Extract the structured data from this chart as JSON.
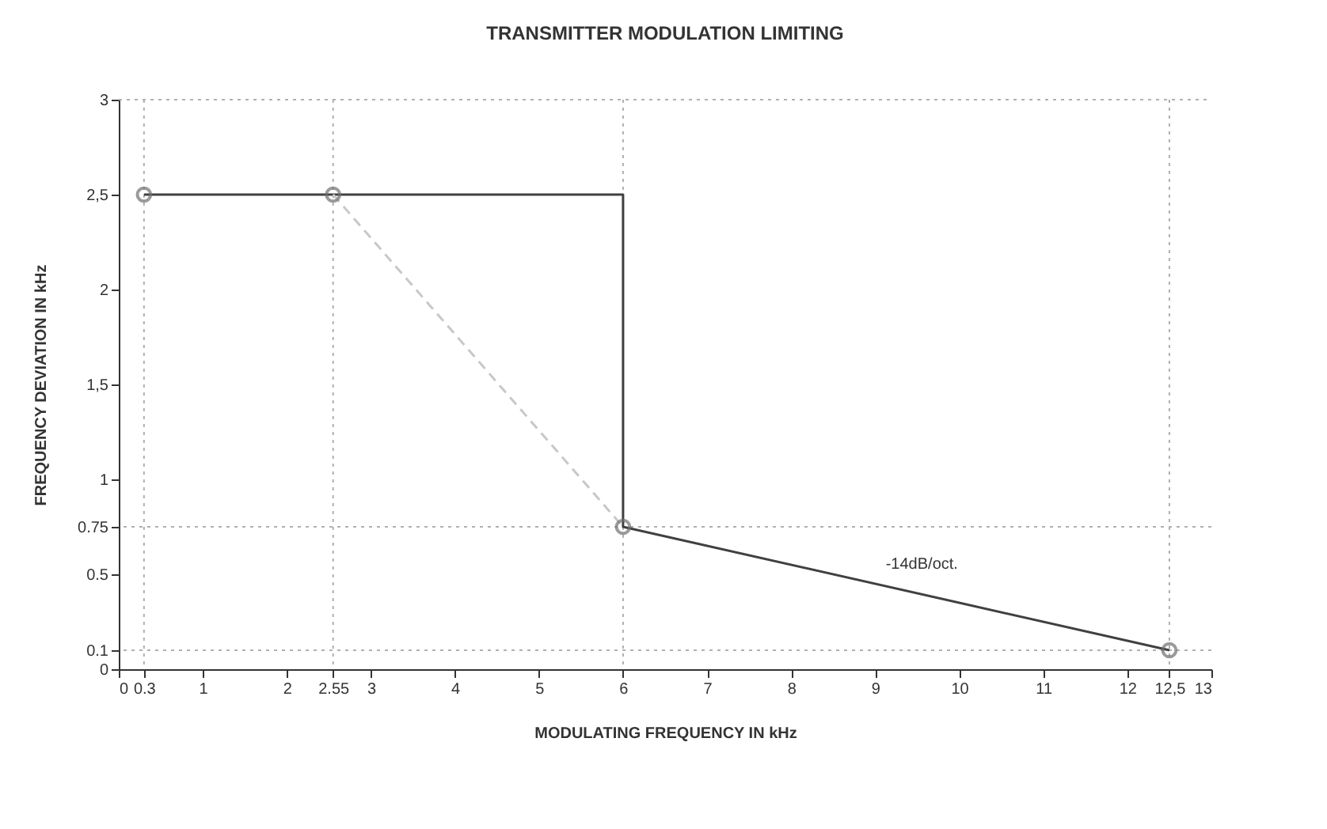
{
  "chart_data": {
    "type": "line",
    "title": "TRANSMITTER MODULATION LIMITING",
    "xlabel": "MODULATING FREQUENCY IN kHz",
    "ylabel": "FREQUENCY DEVIATION IN kHz",
    "series": [
      {
        "color": "#404040",
        "x": [
          0.3,
          2.55,
          6,
          6,
          12.5
        ],
        "values": [
          2.5,
          2.5,
          2.5,
          0.75,
          0.1
        ],
        "marker": "none",
        "line_style": "solid"
      },
      {
        "color": "#c8c8c8",
        "x": [
          2.55,
          6
        ],
        "values": [
          2.5,
          0.75
        ],
        "marker": "none",
        "line_style": "dashed"
      },
      {
        "type": "scatter",
        "color": "#707070",
        "x": [
          0.3,
          2.55,
          6,
          12.5
        ],
        "values": [
          2.5,
          2.5,
          0.75,
          0.1
        ],
        "marker": "circle"
      }
    ],
    "xlim": [
      0,
      13
    ],
    "ylim": [
      0,
      3
    ],
    "xticks": [
      0,
      {
        "value": 0.3,
        "label": "0.3"
      },
      1,
      2,
      {
        "value": 2.55,
        "label": "2.55"
      },
      3,
      4,
      5,
      6,
      7,
      8,
      9,
      10,
      11,
      12,
      {
        "value": 12.5,
        "label": "12,5"
      },
      13
    ],
    "yticks": [
      0,
      {
        "value": 0.1,
        "label": "0.1"
      },
      {
        "value": 0.5,
        "label": "0.5"
      },
      {
        "value": 0.75,
        "label": "0.75"
      },
      1,
      {
        "value": 1.5,
        "label": "1,5"
      },
      2,
      {
        "value": 2.5,
        "label": "2,5"
      },
      3
    ],
    "ref_lines": [
      {
        "axis": "x",
        "value": 0.3,
        "color": "#b0b0b0",
        "line_style": "dotted"
      },
      {
        "axis": "x",
        "value": 2.55,
        "color": "#b0b0b0",
        "line_style": "dotted"
      },
      {
        "axis": "x",
        "value": 6,
        "color": "#b0b0b0",
        "line_style": "dotted"
      },
      {
        "axis": "x",
        "value": 12.5,
        "color": "#b0b0b0",
        "line_style": "dotted"
      },
      {
        "axis": "y",
        "value": 0.1,
        "color": "#b0b0b0",
        "line_style": "dotted"
      },
      {
        "axis": "y",
        "value": 0.75,
        "color": "#b0b0b0",
        "line_style": "dotted"
      }
    ],
    "annotations": [
      "-14dB/oct."
    ],
    "grid": false
  }
}
